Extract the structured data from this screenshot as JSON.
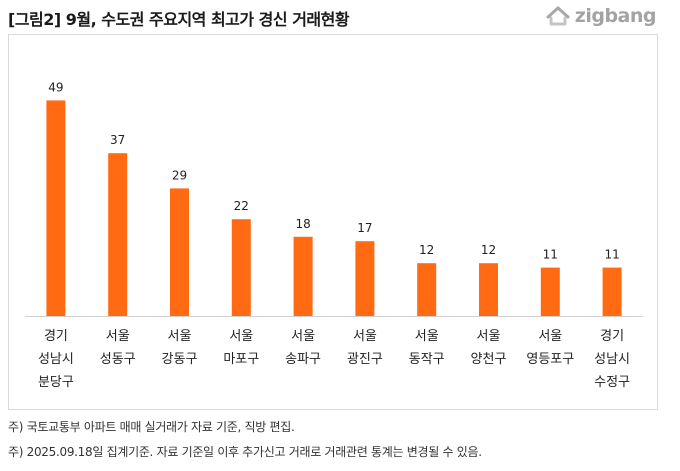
{
  "header": {
    "title": "[그림2] 9월, 수도권 주요지역 최고가 경신 거래현황",
    "logo_text": "zigbang",
    "logo_icon": "zigbang-logo-icon"
  },
  "notes": [
    "주) 국토교통부 아파트 매매 실거래가 자료 기준, 직방 편집.",
    "주)  2025.09.18일 집계기준. 자료 기준일 이후 추가신고 거래로 거래관련 통계는 변경될 수 있음."
  ],
  "chart_data": {
    "type": "bar",
    "title": "",
    "xlabel": "",
    "ylabel": "",
    "ylim": [
      0,
      55
    ],
    "grid": false,
    "bar_color": "#FF6A13",
    "categories": [
      [
        "경기",
        "성남시",
        "분당구"
      ],
      [
        "서울",
        "성동구"
      ],
      [
        "서울",
        "강동구"
      ],
      [
        "서울",
        "마포구"
      ],
      [
        "서울",
        "송파구"
      ],
      [
        "서울",
        "광진구"
      ],
      [
        "서울",
        "동작구"
      ],
      [
        "서울",
        "양천구"
      ],
      [
        "서울",
        "영등포구"
      ],
      [
        "경기",
        "성남시",
        "수정구"
      ]
    ],
    "values": [
      49,
      37,
      29,
      22,
      18,
      17,
      12,
      12,
      11,
      11
    ]
  }
}
